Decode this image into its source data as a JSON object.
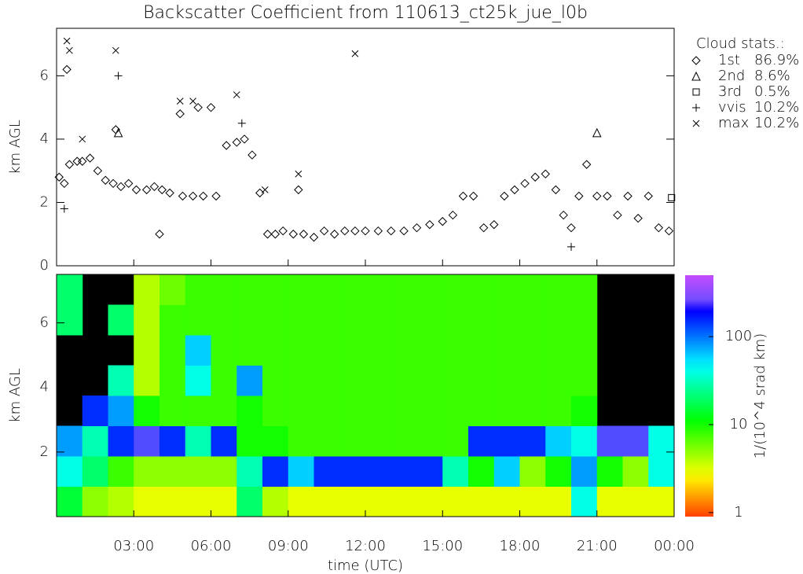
{
  "chart_data": [
    {
      "type": "scatter",
      "title": "Backscatter Coefficient from 110613_ct25k_jue_l0b",
      "ylabel": "km AGL",
      "xlim": [
        0,
        24
      ],
      "xticks": [
        0,
        3,
        6,
        9,
        12,
        15,
        18,
        21,
        24
      ],
      "ylim": [
        0,
        7.5
      ],
      "yticks": [
        0,
        2,
        4,
        6
      ],
      "legend_title": "Cloud stats.:",
      "series": [
        {
          "name": "1st",
          "stat": "86.9%",
          "marker": "diamond",
          "color": "#000000",
          "x": [
            0.1,
            0.3,
            0.5,
            0.8,
            1.0,
            1.3,
            1.6,
            1.9,
            2.2,
            2.5,
            2.8,
            3.1,
            3.5,
            3.8,
            4.1,
            4.4,
            4.9,
            5.3,
            5.7,
            6.2,
            6.6,
            7.0,
            7.3,
            7.6,
            7.9,
            8.2,
            8.5,
            8.8,
            9.2,
            9.6,
            10.0,
            10.4,
            10.8,
            11.2,
            11.6,
            12.0,
            12.5,
            13.0,
            13.5,
            14.0,
            14.5,
            15.0,
            15.4,
            15.8,
            16.2,
            16.6,
            17.0,
            17.4,
            17.8,
            18.2,
            18.6,
            19.0,
            19.4,
            19.7,
            20.0,
            20.3,
            20.6,
            21.0,
            21.4,
            21.8,
            22.2,
            22.6,
            23.0,
            23.4,
            23.8,
            0.4,
            2.3,
            4.8,
            5.5,
            6.0,
            4.0,
            9.4
          ],
          "values": [
            2.8,
            2.6,
            3.2,
            3.3,
            3.3,
            3.4,
            3.0,
            2.7,
            2.6,
            2.5,
            2.6,
            2.4,
            2.4,
            2.5,
            2.4,
            2.3,
            2.2,
            2.2,
            2.2,
            2.2,
            3.8,
            3.9,
            4.0,
            3.5,
            2.3,
            1.0,
            1.0,
            1.1,
            1.0,
            1.0,
            0.9,
            1.1,
            1.0,
            1.1,
            1.1,
            1.1,
            1.1,
            1.1,
            1.1,
            1.2,
            1.3,
            1.4,
            1.6,
            2.2,
            2.2,
            1.2,
            1.3,
            2.2,
            2.4,
            2.6,
            2.8,
            2.9,
            2.4,
            1.6,
            1.2,
            2.2,
            3.2,
            2.2,
            2.2,
            1.6,
            2.2,
            1.5,
            2.2,
            1.2,
            1.1,
            6.2,
            4.3,
            4.8,
            5.0,
            5.0,
            1.0,
            2.4
          ]
        },
        {
          "name": "2nd",
          "stat": "8.6%",
          "marker": "triangle",
          "color": "#000000",
          "x": [
            2.4,
            21.0
          ],
          "values": [
            4.2,
            4.2
          ]
        },
        {
          "name": "3rd",
          "stat": "0.5%",
          "marker": "square",
          "color": "#000000",
          "x": [
            23.9
          ],
          "values": [
            2.15
          ]
        },
        {
          "name": "vvis",
          "stat": "10.2%",
          "marker": "plus",
          "color": "#000000",
          "x": [
            0.3,
            2.4,
            20.0,
            7.2
          ],
          "values": [
            1.8,
            6.0,
            0.6,
            4.5
          ]
        },
        {
          "name": "max",
          "stat": "10.2%",
          "marker": "cross",
          "color": "#000000",
          "x": [
            0.4,
            0.5,
            2.3,
            4.8,
            5.3,
            7.0,
            11.6,
            9.4,
            8.1,
            1.0
          ],
          "values": [
            7.1,
            6.8,
            6.8,
            5.2,
            5.2,
            5.4,
            6.7,
            2.9,
            2.4,
            4.0
          ]
        }
      ]
    },
    {
      "type": "heatmap",
      "ylabel": "km AGL",
      "xlabel": "time (UTC)",
      "xlim": [
        0,
        24
      ],
      "xticks": [
        {
          "value": 3,
          "label": "03:00"
        },
        {
          "value": 6,
          "label": "06:00"
        },
        {
          "value": 9,
          "label": "09:00"
        },
        {
          "value": 12,
          "label": "12:00"
        },
        {
          "value": 15,
          "label": "15:00"
        },
        {
          "value": 18,
          "label": "18:00"
        },
        {
          "value": 21,
          "label": "21:00"
        },
        {
          "value": 24,
          "label": "00:00"
        }
      ],
      "ylim": [
        0,
        7.5
      ],
      "yticks": [
        2,
        4,
        6
      ],
      "colorbar": {
        "label": "1/(10^4 srad km)",
        "lim": [
          0.9,
          500
        ],
        "ticks": [
          1,
          10,
          100
        ],
        "log": true
      },
      "z": [
        [
          15,
          5,
          4,
          3,
          3,
          3,
          3,
          20,
          4,
          3,
          3,
          3,
          3,
          3,
          3,
          3,
          3,
          3,
          3,
          3,
          40,
          3,
          3,
          3
        ],
        [
          40,
          20,
          8,
          5,
          5,
          5,
          5,
          30,
          150,
          60,
          150,
          150,
          150,
          150,
          150,
          30,
          10,
          60,
          5,
          10,
          80,
          10,
          5,
          40
        ],
        [
          80,
          30,
          150,
          200,
          150,
          30,
          150,
          10,
          10,
          8,
          8,
          8,
          8,
          8,
          8,
          8,
          150,
          150,
          150,
          60,
          40,
          200,
          200,
          40
        ],
        [
          null,
          150,
          80,
          10,
          8,
          8,
          8,
          10,
          8,
          8,
          8,
          8,
          8,
          8,
          8,
          8,
          8,
          8,
          8,
          8,
          10,
          null,
          null,
          null
        ],
        [
          null,
          null,
          30,
          4,
          8,
          40,
          8,
          80,
          8,
          8,
          8,
          8,
          8,
          8,
          8,
          8,
          8,
          8,
          8,
          8,
          8,
          null,
          null,
          null
        ],
        [
          null,
          null,
          null,
          4,
          8,
          60,
          8,
          8,
          8,
          8,
          8,
          8,
          8,
          8,
          8,
          8,
          8,
          8,
          8,
          8,
          8,
          null,
          null,
          null
        ],
        [
          20,
          null,
          20,
          4,
          8,
          8,
          8,
          8,
          8,
          8,
          8,
          8,
          8,
          8,
          8,
          8,
          8,
          8,
          8,
          8,
          8,
          null,
          null,
          null
        ],
        [
          20,
          null,
          null,
          4,
          6,
          8,
          8,
          8,
          8,
          8,
          8,
          8,
          8,
          8,
          8,
          8,
          8,
          8,
          8,
          8,
          8,
          null,
          null,
          null
        ]
      ]
    }
  ]
}
